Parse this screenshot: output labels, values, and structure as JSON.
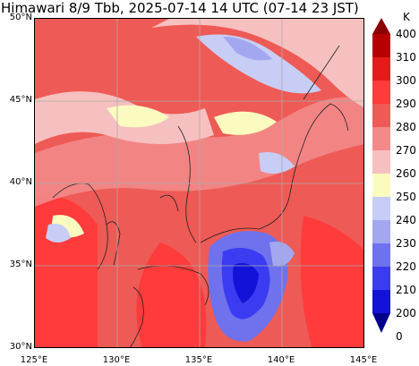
{
  "title": "Himawari 8/9 Tbb, 2025-07-14 14 UTC (07-14 23 JST)",
  "map": {
    "lat_labels": [
      "50°N",
      "45°N",
      "40°N",
      "35°N",
      "30°N"
    ],
    "lon_labels": [
      "125°E",
      "130°E",
      "135°E",
      "140°E",
      "145°E"
    ]
  },
  "colorbar": {
    "unit": "K",
    "labels": [
      "400",
      "310",
      "300",
      "290",
      "280",
      "270",
      "260",
      "250",
      "240",
      "230",
      "220",
      "210",
      "200",
      "0"
    ],
    "colors": [
      "#8b0000",
      "#b40000",
      "#e61a1a",
      "#ff3b3b",
      "#ee5a55",
      "#f28a8a",
      "#f7c0c0",
      "#fbfbbf",
      "#c8cdf5",
      "#a3a7f0",
      "#6f72ec",
      "#3b3bf2",
      "#1212d8",
      "#00008b"
    ]
  }
}
